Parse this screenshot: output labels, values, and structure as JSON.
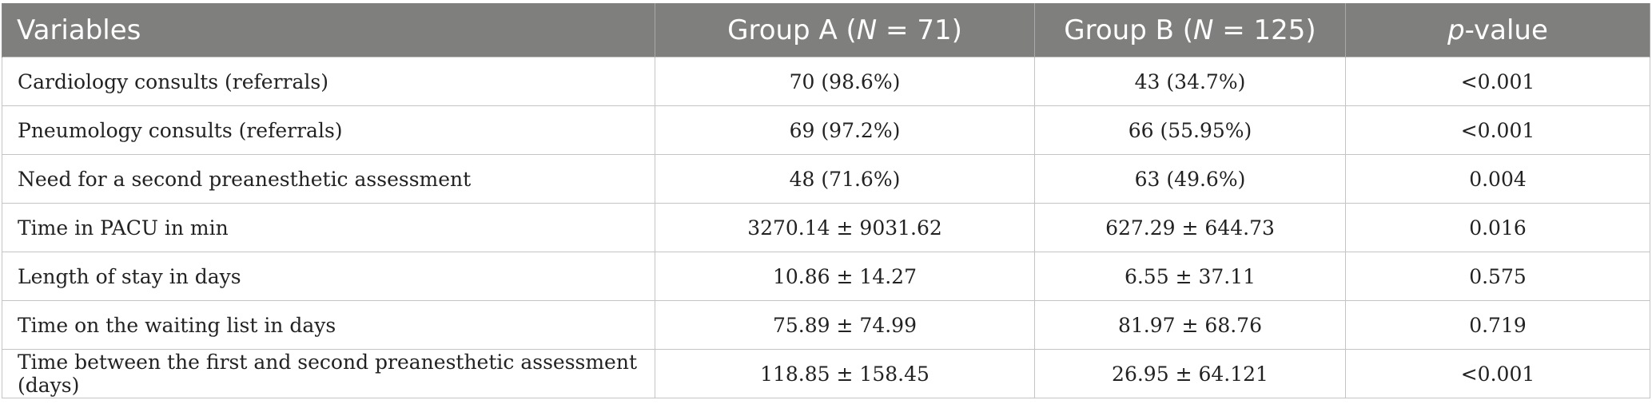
{
  "table": {
    "headers": {
      "variables": "Variables",
      "group_a": {
        "prefix": "Group A (",
        "n_symbol": "N",
        "suffix": " = 71)"
      },
      "group_b": {
        "prefix": "Group B (",
        "n_symbol": "N",
        "suffix": " = 125)"
      },
      "p_value": {
        "p_symbol": "p",
        "suffix": "-value"
      }
    },
    "rows": [
      {
        "variable": "Cardiology consults (referrals)",
        "group_a": "70 (98.6%)",
        "group_b": "43 (34.7%)",
        "p_value": "<0.001"
      },
      {
        "variable": "Pneumology consults (referrals)",
        "group_a": "69 (97.2%)",
        "group_b": "66 (55.95%)",
        "p_value": "<0.001"
      },
      {
        "variable": "Need for a second preanesthetic assessment",
        "group_a": "48 (71.6%)",
        "group_b": "63 (49.6%)",
        "p_value": "0.004"
      },
      {
        "variable": "Time in PACU in min",
        "group_a": "3270.14 ± 9031.62",
        "group_b": "627.29 ± 644.73",
        "p_value": "0.016"
      },
      {
        "variable": "Length of stay in days",
        "group_a": "10.86 ± 14.27",
        "group_b": "6.55 ± 37.11",
        "p_value": "0.575"
      },
      {
        "variable": "Time on the waiting list in days",
        "group_a": "75.89 ± 74.99",
        "group_b": "81.97 ± 68.76",
        "p_value": "0.719"
      },
      {
        "variable": "Time between the first and second preanesthetic assessment (days)",
        "group_a": "118.85 ± 158.45",
        "group_b": "26.95 ± 64.121",
        "p_value": "<0.001"
      }
    ]
  },
  "colors": {
    "header_bg": "#7f7f7e",
    "header_text": "#ffffff",
    "grid": "#c4c4c4",
    "body_text": "#222222"
  }
}
